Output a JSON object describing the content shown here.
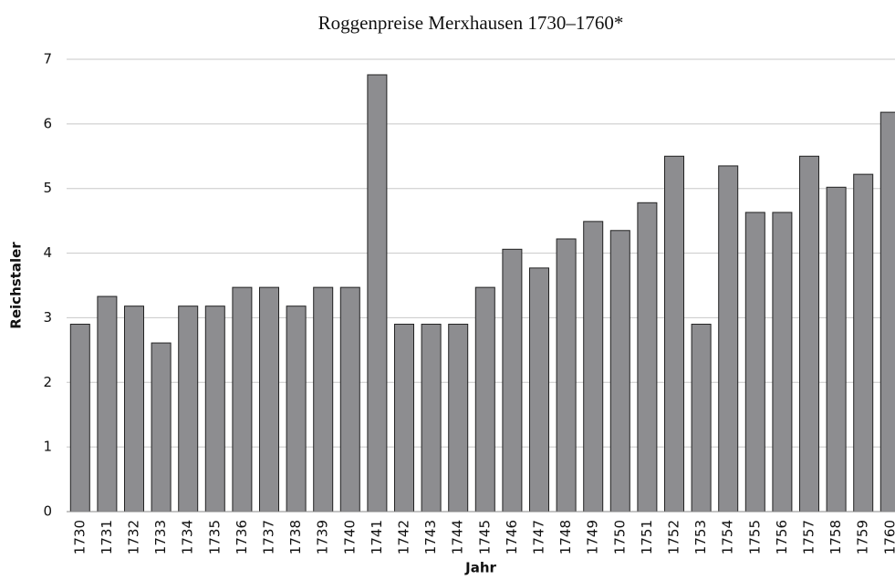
{
  "chart_data": {
    "type": "bar",
    "title": "Roggenpreise Merxhausen 1730–1760*",
    "x_label": "Jahr",
    "y_label": "Reichstaler",
    "categories": [
      "1730",
      "1731",
      "1732",
      "1733",
      "1734",
      "1735",
      "1736",
      "1737",
      "1738",
      "1739",
      "1740",
      "1741",
      "1742",
      "1743",
      "1744",
      "1745",
      "1746",
      "1747",
      "1748",
      "1749",
      "1750",
      "1751",
      "1752",
      "1753",
      "1754",
      "1755",
      "1756",
      "1757",
      "1758",
      "1759",
      "1760"
    ],
    "values": [
      2.9,
      3.33,
      3.18,
      2.61,
      3.18,
      3.18,
      3.47,
      3.47,
      3.18,
      3.47,
      3.47,
      6.76,
      2.9,
      2.9,
      2.9,
      3.47,
      4.06,
      3.77,
      4.22,
      4.49,
      4.35,
      4.78,
      5.5,
      2.9,
      5.35,
      4.63,
      4.63,
      5.5,
      5.02,
      5.22,
      6.18
    ],
    "color": "#8d8d90",
    "ylim": [
      0,
      7
    ],
    "yticks": [
      0,
      1,
      2,
      3,
      4,
      5,
      6,
      7
    ],
    "grid": true
  }
}
